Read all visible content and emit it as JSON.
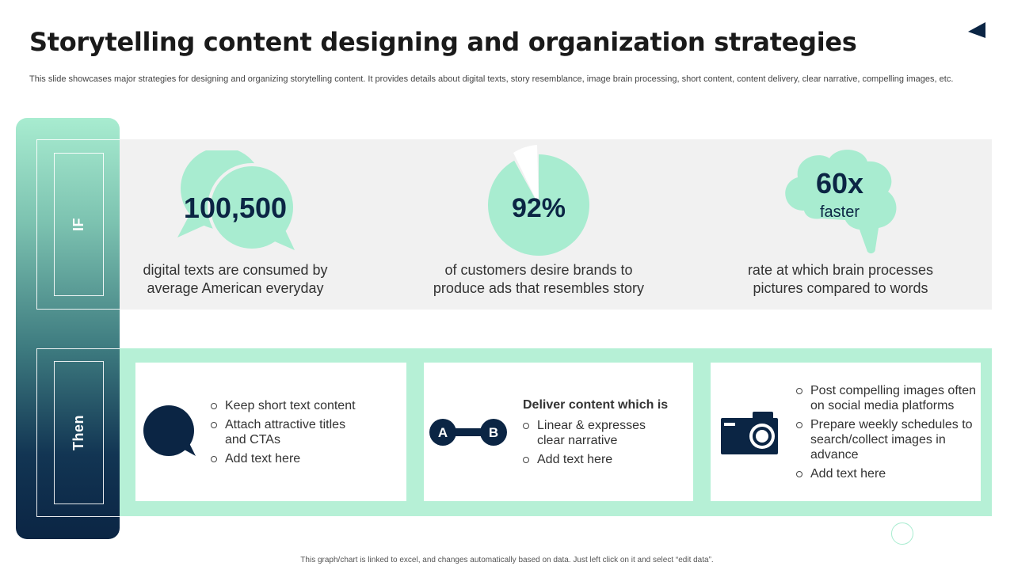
{
  "header": {
    "title": "Storytelling content designing and organization strategies",
    "subtitle": "This slide showcases major strategies for designing and organizing storytelling content. It provides details about digital texts, story resemblance, image brain processing, short content, content delivery, clear narrative, compelling images, etc."
  },
  "sidebar": {
    "if_label": "IF",
    "then_label": "Then"
  },
  "stats": [
    {
      "value": "100,500",
      "description": "digital texts are consumed by average American everyday",
      "icon": "speech-bubbles-icon"
    },
    {
      "value": "92%",
      "description": "of customers desire brands to produce ads that resembles story",
      "icon": "pie-icon",
      "fraction": 0.92
    },
    {
      "value": "60x",
      "value_sub": "faster",
      "description": "rate at which brain processes pictures compared to words",
      "icon": "brain-head-icon"
    }
  ],
  "cards": [
    {
      "icon": "chat-bubble-icon",
      "bullets": [
        "Keep short text content",
        "Attach attractive titles and CTAs",
        "Add text here"
      ]
    },
    {
      "icon": "a-to-b-icon",
      "icon_labels": [
        "A",
        "B"
      ],
      "heading": "Deliver content which is",
      "bullets": [
        "Linear & expresses clear narrative",
        "Add text here"
      ]
    },
    {
      "icon": "camera-icon",
      "bullets": [
        "Post compelling images often on social media platforms",
        "Prepare weekly schedules to search/collect images in advance",
        "Add text here"
      ]
    }
  ],
  "footer": "This graph/chart is linked to excel, and changes automatically based on data. Just left click on it and select “edit data”.",
  "colors": {
    "mint": "#a8ecd0",
    "navy": "#0b2544",
    "band_grey": "#f1f1f1",
    "band_mint": "#b6f0d6"
  }
}
